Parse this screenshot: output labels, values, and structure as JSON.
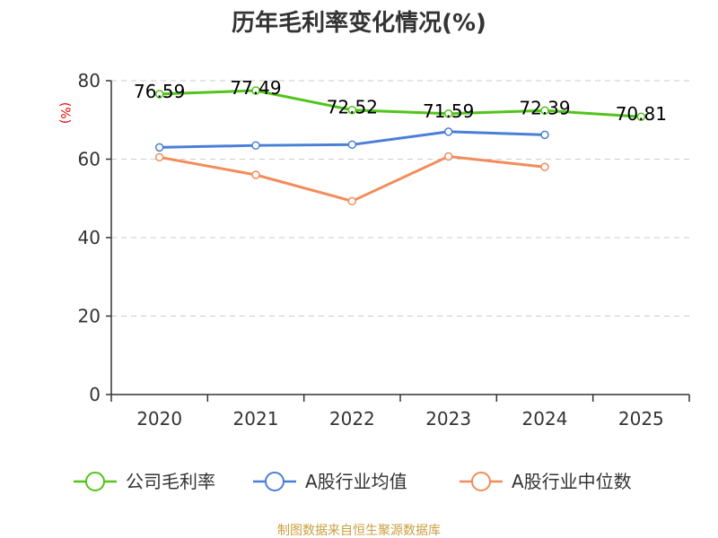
{
  "chart_data": {
    "type": "line",
    "title": "历年毛利率变化情况(%)",
    "ylabel": "(%)",
    "xlabel": "",
    "categories": [
      "2020",
      "2021",
      "2022",
      "2023",
      "2024",
      "2025"
    ],
    "ylim": [
      0,
      80
    ],
    "yticks": [
      0,
      20,
      40,
      60,
      80
    ],
    "grid": true,
    "legend_position": "bottom",
    "series": [
      {
        "name": "公司毛利率",
        "color": "#52c41a",
        "values": [
          76.59,
          77.49,
          72.52,
          71.59,
          72.39,
          70.81
        ],
        "labels": [
          "76.59",
          "77.49",
          "72.52",
          "71.59",
          "72.39",
          "70.81"
        ]
      },
      {
        "name": "A股行业均值",
        "color": "#4a7fd8",
        "values": [
          63.0,
          63.5,
          63.7,
          67.0,
          66.2,
          null
        ],
        "labels": []
      },
      {
        "name": "A股行业中位数",
        "color": "#f28c5a",
        "values": [
          60.5,
          56.0,
          49.3,
          60.7,
          58.0,
          null
        ],
        "labels": []
      }
    ]
  },
  "source": "制图数据来自恒生聚源数据库"
}
